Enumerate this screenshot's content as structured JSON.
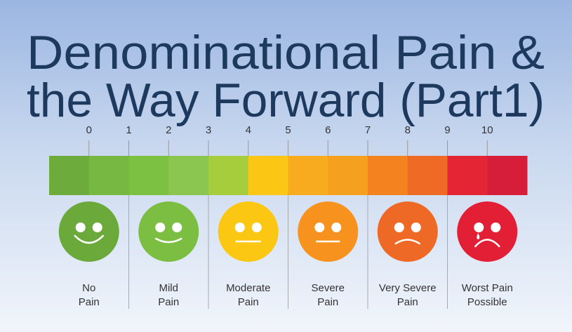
{
  "title": [
    "Denominational Pain &",
    "the Way Forward (Part1)"
  ],
  "scale": [
    0,
    1,
    2,
    3,
    4,
    5,
    6,
    7,
    8,
    9,
    10
  ],
  "faces": [
    {
      "lines": [
        "No",
        "Pain"
      ]
    },
    {
      "lines": [
        "Mild",
        "Pain"
      ]
    },
    {
      "lines": [
        "Moderate",
        "Pain"
      ]
    },
    {
      "lines": [
        "Severe",
        "Pain"
      ]
    },
    {
      "lines": [
        "Very Severe",
        "Pain"
      ]
    },
    {
      "lines": [
        "Worst Pain",
        "Possible"
      ]
    }
  ]
}
